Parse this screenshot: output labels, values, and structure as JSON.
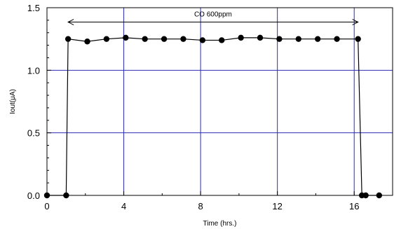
{
  "chart_data": {
    "type": "line",
    "title": "",
    "xlabel": "Time (hrs.)",
    "ylabel": "Iout(μA)",
    "xlim": [
      0,
      18
    ],
    "ylim": [
      0,
      1.5
    ],
    "xticks": [
      0,
      4,
      8,
      12,
      16
    ],
    "xtick_labels": [
      "0",
      "4",
      "8",
      "12",
      "16"
    ],
    "yticks": [
      0,
      0.5,
      1.0,
      1.5
    ],
    "ytick_labels": [
      "0.0",
      "0.5",
      "1.0",
      "1.5"
    ],
    "grid": true,
    "grid_color": "#2b2bb5",
    "line_color": "#000000",
    "marker": "filled-circle",
    "series": [
      {
        "x": [
          0,
          1,
          1.1,
          2.1,
          3.1,
          4.1,
          5.1,
          6.1,
          7.1,
          8.1,
          9.1,
          10.1,
          11.1,
          12.1,
          13.1,
          14.1,
          15.1,
          16.2,
          16.4,
          16.6,
          17.3
        ],
        "y": [
          0,
          0,
          1.25,
          1.23,
          1.25,
          1.26,
          1.25,
          1.25,
          1.25,
          1.24,
          1.24,
          1.26,
          1.26,
          1.25,
          1.25,
          1.25,
          1.25,
          1.25,
          0,
          0,
          0
        ]
      }
    ],
    "annotations": [
      {
        "text": "CO 600ppm",
        "x_start": 1.1,
        "x_end": 16.2,
        "y": 1.385,
        "type": "double-arrow"
      }
    ]
  }
}
